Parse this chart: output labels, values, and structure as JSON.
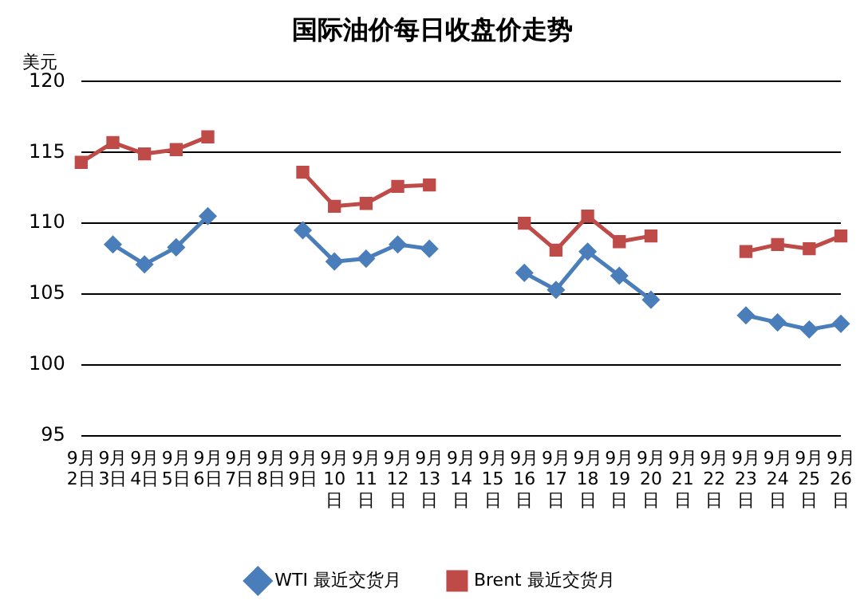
{
  "chart_data": {
    "type": "line",
    "title": "国际油价每日收盘价走势",
    "ylabel": "美元",
    "categories": [
      "9月2日",
      "9月3日",
      "9月4日",
      "9月5日",
      "9月6日",
      "9月7日",
      "9月8日",
      "9月9日",
      "9月10日",
      "9月11日",
      "9月12日",
      "9月13日",
      "9月14日",
      "9月15日",
      "9月16日",
      "9月17日",
      "9月18日",
      "9月19日",
      "9月20日",
      "9月21日",
      "9月22日",
      "9月23日",
      "9月24日",
      "9月25日",
      "9月26日"
    ],
    "series": [
      {
        "name": "WTI 最近交货月",
        "color": "#4a7ebb",
        "marker": "diamond",
        "values": [
          null,
          108.5,
          107.1,
          108.3,
          110.5,
          null,
          null,
          109.5,
          107.3,
          107.5,
          108.5,
          108.2,
          null,
          null,
          106.5,
          105.3,
          108.0,
          106.3,
          104.6,
          null,
          null,
          103.5,
          103.0,
          102.5,
          102.9
        ]
      },
      {
        "name": "Brent 最近交货月",
        "color": "#be4b48",
        "marker": "square",
        "values": [
          114.3,
          115.7,
          114.9,
          115.2,
          116.1,
          null,
          null,
          113.6,
          111.2,
          111.4,
          112.6,
          112.7,
          null,
          null,
          110.0,
          108.1,
          110.5,
          108.7,
          109.1,
          null,
          null,
          108.0,
          108.5,
          108.2,
          109.1
        ]
      }
    ],
    "ylim": [
      95,
      120
    ],
    "yticks": [
      95,
      100,
      105,
      110,
      115,
      120
    ],
    "grid": "y",
    "legend": "bottom"
  }
}
